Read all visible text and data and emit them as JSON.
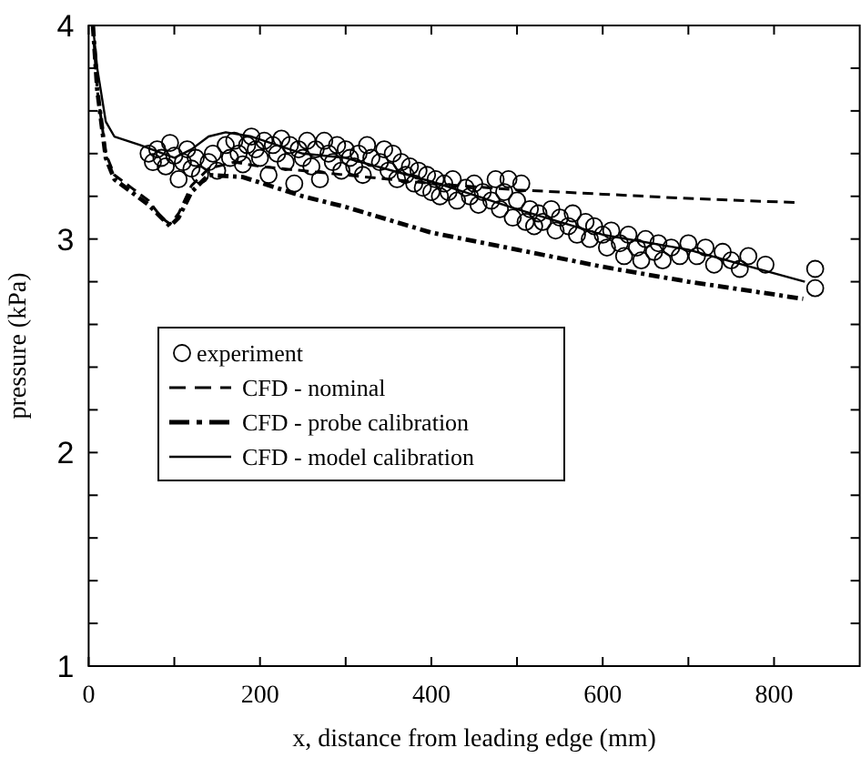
{
  "chart_data": {
    "type": "line",
    "xlabel": "x, distance from leading edge (mm)",
    "ylabel": "pressure (kPa)",
    "xlim": [
      0,
      900
    ],
    "xticks": [
      0,
      {
        "value": 100,
        "label": null
      },
      200,
      {
        "value": 300,
        "label": null
      },
      400,
      {
        "value": 500,
        "label": null
      },
      600,
      {
        "value": 700,
        "label": null
      },
      800
    ],
    "ylim": [
      1,
      4
    ],
    "yticks": [
      1,
      {
        "value": 1.2,
        "label": null
      },
      {
        "value": 1.4,
        "label": null
      },
      {
        "value": 1.6,
        "label": null
      },
      {
        "value": 1.8,
        "label": null
      },
      2,
      {
        "value": 2.2,
        "label": null
      },
      {
        "value": 2.4,
        "label": null
      },
      {
        "value": 2.6,
        "label": null
      },
      {
        "value": 2.8,
        "label": null
      },
      3,
      {
        "value": 3.2,
        "label": null
      },
      {
        "value": 3.4,
        "label": null
      },
      {
        "value": 3.6,
        "label": null
      },
      {
        "value": 3.8,
        "label": null
      },
      4
    ],
    "grid": false,
    "legend": "left",
    "series": [
      {
        "name": "experiment",
        "type": "scatter",
        "marker": "circle",
        "color": "#000000",
        "x": [
          70,
          75,
          80,
          85,
          90,
          95,
          100,
          105,
          110,
          115,
          120,
          125,
          130,
          140,
          145,
          150,
          160,
          165,
          170,
          175,
          180,
          185,
          190,
          195,
          200,
          205,
          210,
          215,
          220,
          225,
          230,
          235,
          240,
          245,
          250,
          255,
          260,
          265,
          270,
          275,
          280,
          285,
          290,
          295,
          300,
          305,
          310,
          315,
          320,
          325,
          330,
          340,
          345,
          350,
          355,
          360,
          365,
          370,
          375,
          380,
          385,
          390,
          395,
          400,
          405,
          410,
          415,
          420,
          425,
          430,
          440,
          445,
          450,
          455,
          460,
          470,
          475,
          480,
          485,
          490,
          495,
          500,
          505,
          510,
          515,
          520,
          525,
          530,
          540,
          545,
          550,
          560,
          565,
          570,
          580,
          585,
          590,
          600,
          605,
          610,
          620,
          625,
          630,
          640,
          645,
          650,
          660,
          665,
          670,
          680,
          690,
          700,
          710,
          720,
          730,
          740,
          750,
          760,
          770,
          790,
          848,
          848
        ],
        "values": [
          3.4,
          3.36,
          3.42,
          3.38,
          3.34,
          3.45,
          3.39,
          3.28,
          3.36,
          3.42,
          3.33,
          3.38,
          3.3,
          3.36,
          3.4,
          3.32,
          3.44,
          3.38,
          3.46,
          3.4,
          3.35,
          3.44,
          3.48,
          3.42,
          3.38,
          3.46,
          3.3,
          3.44,
          3.4,
          3.47,
          3.36,
          3.44,
          3.26,
          3.42,
          3.38,
          3.46,
          3.34,
          3.42,
          3.28,
          3.46,
          3.4,
          3.36,
          3.44,
          3.32,
          3.42,
          3.38,
          3.34,
          3.4,
          3.3,
          3.44,
          3.38,
          3.36,
          3.42,
          3.32,
          3.4,
          3.28,
          3.36,
          3.3,
          3.34,
          3.26,
          3.32,
          3.24,
          3.3,
          3.22,
          3.28,
          3.2,
          3.26,
          3.22,
          3.28,
          3.18,
          3.24,
          3.2,
          3.26,
          3.16,
          3.22,
          3.18,
          3.28,
          3.14,
          3.22,
          3.28,
          3.1,
          3.18,
          3.26,
          3.08,
          3.14,
          3.06,
          3.12,
          3.08,
          3.14,
          3.04,
          3.1,
          3.06,
          3.12,
          3.02,
          3.08,
          3.0,
          3.06,
          3.02,
          2.96,
          3.04,
          2.98,
          2.92,
          3.02,
          2.96,
          2.9,
          3.0,
          2.94,
          2.98,
          2.9,
          2.96,
          2.92,
          2.98,
          2.92,
          2.96,
          2.88,
          2.94,
          2.9,
          2.86,
          2.92,
          2.88,
          2.86,
          2.77
        ]
      },
      {
        "name": "CFD - nominal",
        "line_style": "dashed",
        "color": "#000000",
        "x": [
          5,
          10,
          20,
          30,
          50,
          70,
          85,
          95,
          105,
          120,
          140,
          170,
          200,
          300,
          400,
          500,
          600,
          700,
          830
        ],
        "values": [
          4.0,
          3.7,
          3.4,
          3.3,
          3.24,
          3.18,
          3.1,
          3.07,
          3.12,
          3.25,
          3.33,
          3.36,
          3.34,
          3.3,
          3.26,
          3.23,
          3.21,
          3.19,
          3.17
        ]
      },
      {
        "name": "CFD - probe calibration",
        "line_style": "dashdot",
        "color": "#000000",
        "x": [
          5,
          10,
          20,
          30,
          50,
          70,
          85,
          95,
          105,
          120,
          140,
          180,
          250,
          300,
          400,
          500,
          600,
          700,
          834
        ],
        "values": [
          4.0,
          3.7,
          3.38,
          3.28,
          3.22,
          3.16,
          3.1,
          3.06,
          3.1,
          3.22,
          3.3,
          3.29,
          3.2,
          3.15,
          3.03,
          2.95,
          2.87,
          2.8,
          2.72
        ]
      },
      {
        "name": "CFD - model calibration",
        "line_style": "solid",
        "color": "#000000",
        "x": [
          5,
          10,
          20,
          30,
          60,
          100,
          120,
          140,
          160,
          190,
          250,
          300,
          400,
          500,
          600,
          700,
          836
        ],
        "values": [
          4.0,
          3.8,
          3.55,
          3.48,
          3.44,
          3.38,
          3.42,
          3.48,
          3.5,
          3.48,
          3.4,
          3.38,
          3.27,
          3.14,
          3.02,
          2.95,
          2.8
        ]
      }
    ]
  }
}
